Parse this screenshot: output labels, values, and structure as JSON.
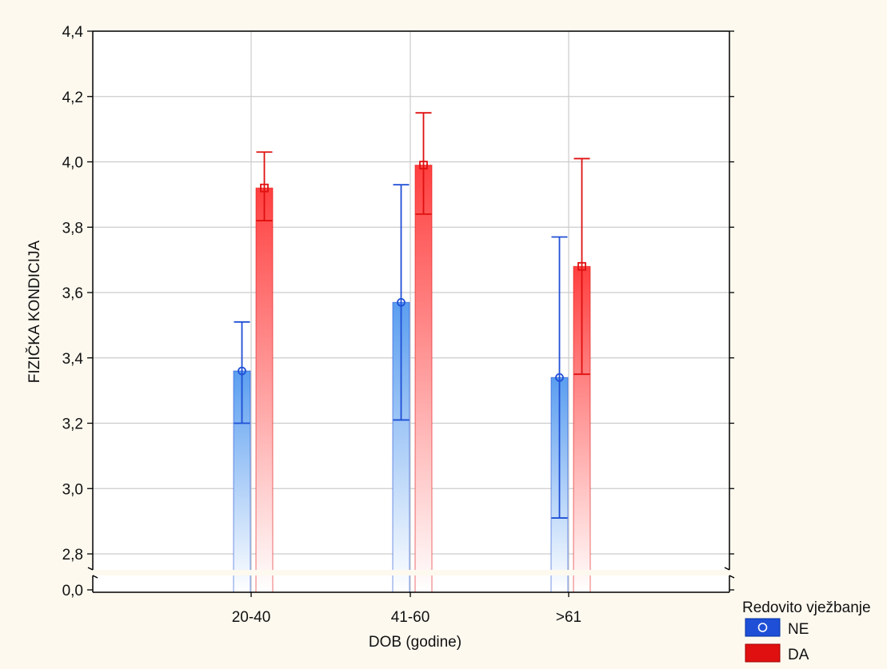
{
  "chart_data": {
    "type": "bar",
    "title": "",
    "xlabel": "DOB (godine)",
    "ylabel": "FIZIČKA KONDICIJA",
    "categories": [
      "20-40",
      "41-60",
      ">61"
    ],
    "y_ticks": [
      "0,0",
      "2,8",
      "3,0",
      "3,2",
      "3,4",
      "3,6",
      "3,8",
      "4,0",
      "4,2",
      "4,4"
    ],
    "ylim": [
      2.75,
      4.4
    ],
    "y_axis_break": true,
    "grid": true,
    "legend": {
      "title": "Redovito vježbanje",
      "placement": "bottom-right"
    },
    "series": [
      {
        "name": "NE",
        "color": "#1f4fd6",
        "fill_top": "#5b9ef0",
        "marker": "circle",
        "values": [
          3.36,
          3.57,
          3.34
        ],
        "error_low": [
          3.2,
          3.21,
          2.91
        ],
        "error_high": [
          3.51,
          3.93,
          3.77
        ]
      },
      {
        "name": "DA",
        "color": "#e01010",
        "fill_top": "#ff4040",
        "marker": "square",
        "values": [
          3.92,
          3.99,
          3.68
        ],
        "error_low": [
          3.82,
          3.84,
          3.35
        ],
        "error_high": [
          4.03,
          4.15,
          4.01
        ]
      }
    ]
  }
}
